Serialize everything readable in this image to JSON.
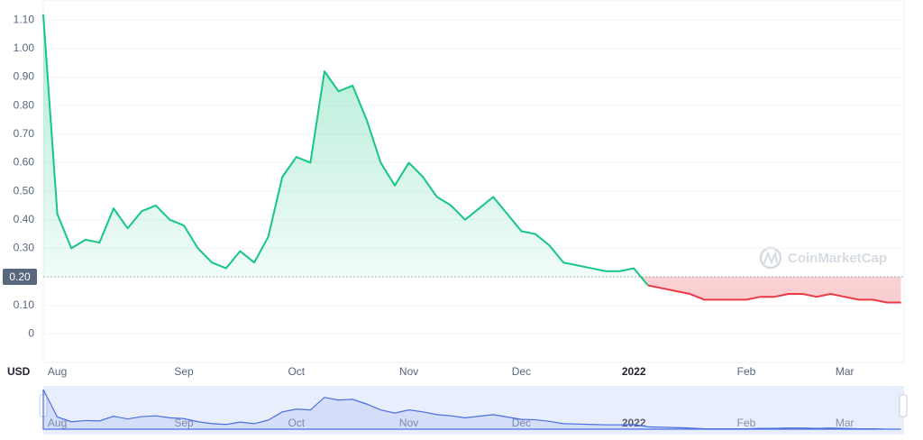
{
  "chart_data": {
    "type": "line",
    "currency": "USD",
    "watermark": "CoinMarketCap",
    "categories": [
      null,
      "Aug",
      null,
      null,
      null,
      null,
      null,
      null,
      null,
      null,
      "Sep",
      null,
      null,
      null,
      null,
      null,
      null,
      null,
      "Oct",
      null,
      null,
      null,
      null,
      null,
      null,
      null,
      "Nov",
      null,
      null,
      null,
      null,
      null,
      null,
      null,
      "Dec",
      null,
      null,
      null,
      null,
      null,
      null,
      null,
      "2022",
      null,
      null,
      null,
      null,
      null,
      null,
      null,
      "Feb",
      null,
      null,
      null,
      null,
      null,
      null,
      "Mar",
      null,
      null,
      null,
      null
    ],
    "series": [
      {
        "values": [
          1.12,
          0.42,
          0.3,
          0.33,
          0.32,
          0.44,
          0.37,
          0.43,
          0.45,
          0.4,
          0.38,
          0.3,
          0.25,
          0.23,
          0.29,
          0.25,
          0.34,
          0.55,
          0.62,
          0.6,
          0.92,
          0.85,
          0.87,
          0.75,
          0.6,
          0.52,
          0.6,
          0.55,
          0.48,
          0.45,
          0.4,
          0.44,
          0.48,
          0.42,
          0.36,
          0.35,
          0.31,
          0.25,
          0.24,
          0.23,
          0.22,
          0.22,
          0.23,
          0.17,
          0.16,
          0.15,
          0.14,
          0.12,
          0.12,
          0.12,
          0.12,
          0.13,
          0.13,
          0.14,
          0.14,
          0.13,
          0.14,
          0.13,
          0.12,
          0.12,
          0.11,
          0.11
        ]
      }
    ],
    "up_color": "#16c784",
    "down_color": "#ea3943",
    "navigator_color": "#4a6ee0",
    "baseline": {
      "value": 0.2,
      "label": "0.20"
    },
    "ylim": [
      -0.1,
      1.17
    ],
    "yticks": [
      0,
      {
        "value": 0.1,
        "label": "0.10"
      },
      {
        "value": 0.3,
        "label": "0.30"
      },
      {
        "value": 0.4,
        "label": "0.40"
      },
      {
        "value": 0.5,
        "label": "0.50"
      },
      {
        "value": 0.6,
        "label": "0.60"
      },
      {
        "value": 0.7,
        "label": "0.70"
      },
      {
        "value": 0.8,
        "label": "0.80"
      },
      {
        "value": 0.9,
        "label": "0.90"
      },
      {
        "value": 1.0,
        "label": "1.00"
      },
      {
        "value": 1.1,
        "label": "1.10"
      }
    ],
    "grid": true
  }
}
